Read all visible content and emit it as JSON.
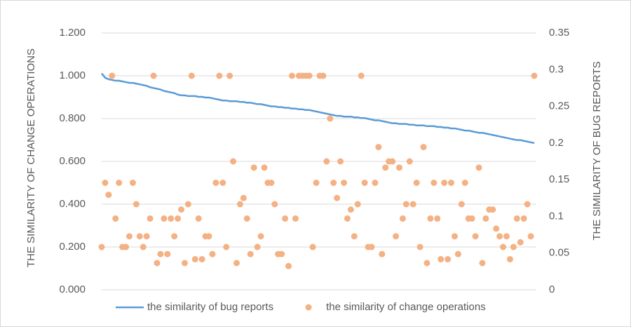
{
  "chart_data": {
    "type": "line",
    "y_label": "THE SIMILARITY OF CHANGE OPERATIONS",
    "y2_label": "THE SIMILARITY OF BUG REPORTS",
    "ylim": [
      0,
      1.2
    ],
    "yticks": [
      {
        "value": 0,
        "label": "0.000"
      },
      {
        "value": 0.2,
        "label": "0.200"
      },
      {
        "value": 0.4,
        "label": "0.400"
      },
      {
        "value": 0.6,
        "label": "0.600"
      },
      {
        "value": 0.8,
        "label": "0.800"
      },
      {
        "value": 1,
        "label": "1.000"
      },
      {
        "value": 1.2,
        "label": "1.200"
      }
    ],
    "y2lim": [
      0,
      0.35
    ],
    "y2ticks": [
      0,
      0.05,
      0.1,
      0.15,
      0.2,
      0.25,
      0.3,
      0.35
    ],
    "grid": true,
    "legend": "bottom",
    "series": [
      {
        "name": "the similarity of bug reports",
        "type": "line",
        "axis": "y2",
        "color": "#5b9bd5",
        "values": [
          0.295,
          0.289,
          0.287,
          0.286,
          0.285,
          0.285,
          0.284,
          0.283,
          0.282,
          0.282,
          0.281,
          0.28,
          0.279,
          0.278,
          0.276,
          0.275,
          0.274,
          0.273,
          0.271,
          0.27,
          0.269,
          0.268,
          0.266,
          0.265,
          0.265,
          0.264,
          0.264,
          0.264,
          0.263,
          0.263,
          0.262,
          0.262,
          0.261,
          0.26,
          0.259,
          0.258,
          0.258,
          0.257,
          0.257,
          0.257,
          0.256,
          0.256,
          0.255,
          0.255,
          0.254,
          0.253,
          0.253,
          0.252,
          0.251,
          0.25,
          0.25,
          0.249,
          0.249,
          0.248,
          0.248,
          0.247,
          0.247,
          0.246,
          0.246,
          0.245,
          0.245,
          0.244,
          0.243,
          0.242,
          0.241,
          0.24,
          0.239,
          0.238,
          0.237,
          0.237,
          0.236,
          0.236,
          0.236,
          0.235,
          0.235,
          0.234,
          0.234,
          0.233,
          0.232,
          0.231,
          0.231,
          0.23,
          0.229,
          0.228,
          0.227,
          0.227,
          0.226,
          0.226,
          0.226,
          0.225,
          0.225,
          0.224,
          0.224,
          0.224,
          0.223,
          0.223,
          0.223,
          0.222,
          0.222,
          0.221,
          0.221,
          0.22,
          0.22,
          0.219,
          0.218,
          0.217,
          0.217,
          0.216,
          0.215,
          0.214,
          0.214,
          0.213,
          0.212,
          0.211,
          0.21,
          0.209,
          0.208,
          0.207,
          0.206,
          0.205,
          0.204,
          0.204,
          0.203,
          0.202,
          0.201,
          0.2
        ]
      },
      {
        "name": "the similarity of change operations",
        "type": "scatter",
        "axis": "y",
        "color": "#f4b183",
        "values": [
          0.2,
          0.5,
          0.444,
          1,
          0.333,
          0.5,
          0.2,
          0.2,
          0.25,
          0.5,
          0.4,
          0.25,
          0.2,
          0.25,
          0.333,
          1,
          0.125,
          0.167,
          0.333,
          0.167,
          0.333,
          0.25,
          0.333,
          0.375,
          0.125,
          0.4,
          1,
          0.143,
          0.333,
          0.143,
          0.25,
          0.25,
          0.167,
          0.5,
          1,
          0.5,
          0.2,
          1,
          0.6,
          0.125,
          0.4,
          0.429,
          0.333,
          0.167,
          0.571,
          0.2,
          0.25,
          0.571,
          0.5,
          0.5,
          0.4,
          0.167,
          0.167,
          0.333,
          0.111,
          1,
          0.333,
          1,
          1,
          1,
          1,
          0.2,
          0.5,
          1,
          1,
          0.6,
          0.8,
          0.5,
          0.429,
          0.6,
          0.5,
          0.333,
          0.375,
          0.25,
          0.4,
          1,
          0.5,
          0.2,
          0.2,
          0.5,
          0.667,
          0.167,
          0.571,
          0.6,
          0.6,
          0.25,
          0.571,
          0.333,
          0.4,
          0.6,
          0.4,
          0.5,
          0.2,
          0.667,
          0.125,
          0.333,
          0.5,
          0.333,
          0.143,
          0.5,
          0.143,
          0.5,
          0.25,
          0.167,
          0.4,
          0.5,
          0.333,
          0.333,
          0.25,
          0.571,
          0.125,
          0.333,
          0.375,
          0.375,
          0.286,
          0.25,
          0.2,
          0.25,
          0.143,
          0.2,
          0.333,
          0.222,
          0.333,
          0.4,
          0.25,
          1
        ]
      }
    ]
  }
}
